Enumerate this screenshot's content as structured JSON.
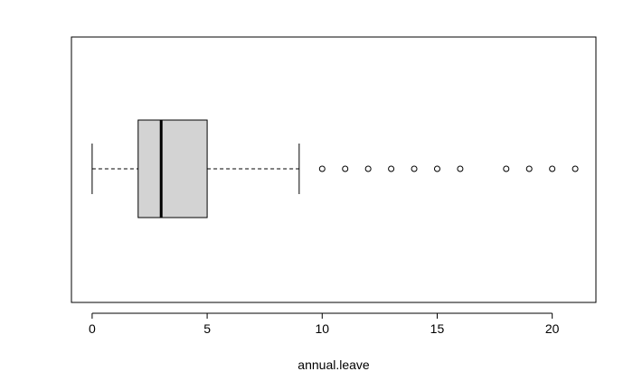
{
  "chart_data": {
    "type": "boxplot",
    "orientation": "horizontal",
    "xlabel": "annual.leave",
    "xlim": [
      -0.9,
      21.9
    ],
    "xticks": [
      0,
      5,
      10,
      15,
      20
    ],
    "tick_labels": [
      "0",
      "5",
      "10",
      "15",
      "20"
    ],
    "box": {
      "whisker_low": 0,
      "q1": 2,
      "median": 3,
      "q3": 5,
      "whisker_high": 9,
      "outliers": [
        10,
        11,
        12,
        13,
        14,
        15,
        16,
        18,
        19,
        20,
        21
      ]
    },
    "colors": {
      "box_fill": "#d3d3d3",
      "stroke": "#000000",
      "background": "#ffffff"
    },
    "grid": false,
    "legend": "none"
  }
}
